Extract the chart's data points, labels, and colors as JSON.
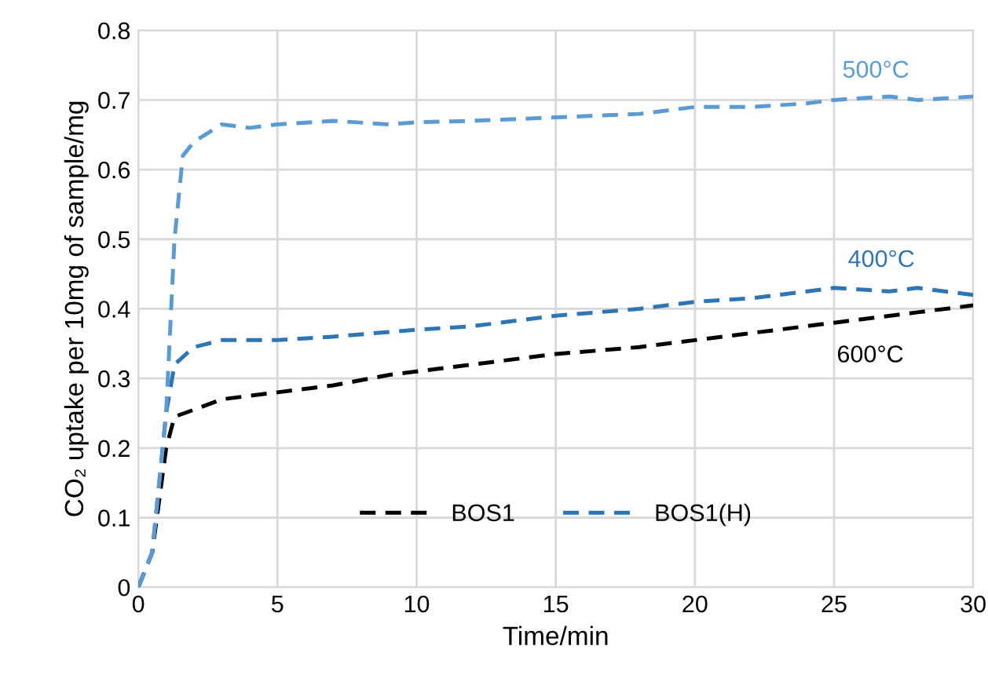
{
  "chart_data": {
    "type": "line",
    "xlabel": "Time/min",
    "ylabel": "CO₂ uptake per 10mg of sample/mg",
    "xlim": [
      0,
      30
    ],
    "xticks": [
      0,
      5,
      10,
      15,
      20,
      25,
      30
    ],
    "ylim": [
      0,
      0.8
    ],
    "yticks": [
      0,
      0.1,
      0.2,
      0.3,
      0.4,
      0.5,
      0.6,
      0.7,
      0.8
    ],
    "grid": true,
    "legend": "bottom",
    "line_style": "dashed",
    "marker": "none",
    "series": [
      {
        "name": "BOS1",
        "color": "#000000",
        "x": [
          0,
          0.5,
          1,
          1.3,
          2,
          3,
          5,
          7,
          9,
          10,
          12,
          15,
          18,
          20,
          22,
          25,
          28,
          30
        ],
        "values": [
          0,
          0.05,
          0.2,
          0.245,
          0.255,
          0.27,
          0.28,
          0.29,
          0.305,
          0.31,
          0.32,
          0.335,
          0.345,
          0.355,
          0.365,
          0.38,
          0.395,
          0.405
        ]
      },
      {
        "name": "BOS1(H)",
        "color": "#2e75b6",
        "x": [
          0,
          0.5,
          1,
          1.3,
          2,
          3,
          5,
          7,
          10,
          12,
          15,
          18,
          20,
          22,
          25,
          27,
          28,
          30
        ],
        "values": [
          0,
          0.05,
          0.25,
          0.32,
          0.345,
          0.355,
          0.355,
          0.36,
          0.37,
          0.375,
          0.39,
          0.4,
          0.41,
          0.415,
          0.43,
          0.425,
          0.43,
          0.42
        ]
      },
      {
        "color": "#5b9bd5",
        "x": [
          0,
          0.5,
          1,
          1.3,
          1.6,
          2,
          3,
          4,
          5,
          7,
          9,
          10,
          12,
          15,
          18,
          20,
          22,
          24,
          25,
          27,
          28,
          30
        ],
        "values": [
          0,
          0.05,
          0.25,
          0.5,
          0.62,
          0.64,
          0.665,
          0.66,
          0.665,
          0.67,
          0.665,
          0.668,
          0.67,
          0.675,
          0.68,
          0.69,
          0.69,
          0.695,
          0.7,
          0.705,
          0.7,
          0.705
        ]
      }
    ],
    "annotations": [
      {
        "text": "500°C",
        "x": 26.5,
        "y": 0.7
      },
      {
        "text": "400°C",
        "x": 26.7,
        "y": 0.428
      },
      {
        "text": "600°C",
        "x": 26.3,
        "y": 0.385
      }
    ]
  }
}
